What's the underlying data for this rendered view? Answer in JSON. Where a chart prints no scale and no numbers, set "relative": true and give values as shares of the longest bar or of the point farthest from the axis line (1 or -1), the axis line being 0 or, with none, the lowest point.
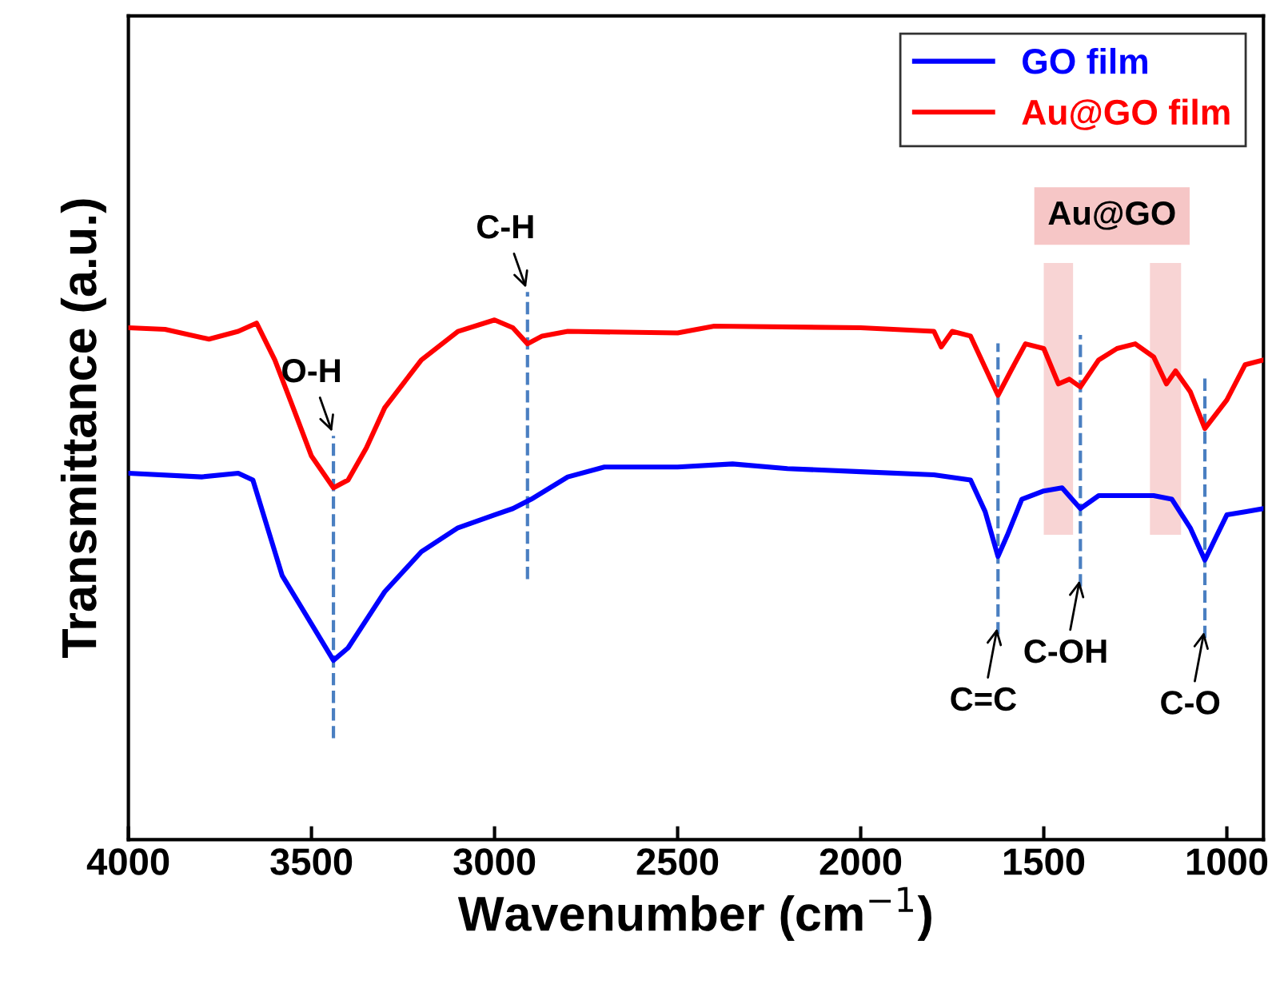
{
  "chart_data": {
    "type": "line",
    "relative": true,
    "xlabel": "Wavenumber (cm$^{−1}$)",
    "ylabel": "Transmittance (a.u.)",
    "xlim": [
      4000,
      900
    ],
    "xticks": [
      4000,
      3500,
      3000,
      2500,
      2000,
      1500,
      1000
    ],
    "legend": "top right",
    "grid": false,
    "series": [
      {
        "name": "GO film",
        "color": "#0000ff",
        "x": [
          4000,
          3800,
          3700,
          3660,
          3620,
          3580,
          3500,
          3440,
          3400,
          3300,
          3200,
          3100,
          3000,
          2950,
          2900,
          2800,
          2700,
          2500,
          2350,
          2200,
          2000,
          1800,
          1700,
          1660,
          1625,
          1600,
          1560,
          1500,
          1450,
          1400,
          1350,
          1250,
          1200,
          1150,
          1100,
          1060,
          1000,
          950,
          900
        ],
        "values": [
          0.705,
          0.698,
          0.705,
          0.692,
          0.6,
          0.508,
          0.415,
          0.345,
          0.369,
          0.477,
          0.554,
          0.6,
          0.625,
          0.637,
          0.655,
          0.698,
          0.717,
          0.717,
          0.723,
          0.714,
          0.708,
          0.702,
          0.692,
          0.631,
          0.545,
          0.585,
          0.655,
          0.671,
          0.677,
          0.637,
          0.662,
          0.662,
          0.662,
          0.655,
          0.6,
          0.538,
          0.625,
          0.631,
          0.637
        ]
      },
      {
        "name": "Au@GO film",
        "color": "#ff0000",
        "x": [
          4000,
          3900,
          3780,
          3700,
          3650,
          3600,
          3550,
          3500,
          3440,
          3400,
          3350,
          3300,
          3200,
          3100,
          3000,
          2950,
          2910,
          2870,
          2800,
          2500,
          2400,
          2000,
          1800,
          1780,
          1750,
          1700,
          1660,
          1625,
          1590,
          1550,
          1500,
          1460,
          1430,
          1400,
          1350,
          1300,
          1250,
          1200,
          1165,
          1140,
          1100,
          1060,
          1000,
          950,
          900
        ],
        "values": [
          0.985,
          0.982,
          0.963,
          0.978,
          0.994,
          0.923,
          0.831,
          0.738,
          0.677,
          0.692,
          0.754,
          0.831,
          0.923,
          0.978,
          1.0,
          0.985,
          0.954,
          0.969,
          0.978,
          0.975,
          0.988,
          0.985,
          0.978,
          0.948,
          0.978,
          0.969,
          0.908,
          0.855,
          0.902,
          0.954,
          0.945,
          0.877,
          0.886,
          0.871,
          0.923,
          0.945,
          0.954,
          0.929,
          0.877,
          0.902,
          0.862,
          0.791,
          0.846,
          0.914,
          0.923
        ]
      }
    ],
    "ref_lines": [
      {
        "axis": "x",
        "value": 3440,
        "label": "O-H",
        "color": "#4a7fc1",
        "line_style": "dashed"
      },
      {
        "axis": "x",
        "value": 2910,
        "label": "C-H",
        "color": "#4a7fc1",
        "line_style": "dashed"
      },
      {
        "axis": "x",
        "value": 1625,
        "label": "C=C",
        "color": "#4a7fc1",
        "line_style": "dashed"
      },
      {
        "axis": "x",
        "value": 1400,
        "label": "C-OH",
        "color": "#4a7fc1",
        "line_style": "dashed"
      },
      {
        "axis": "x",
        "value": 1060,
        "label": "C-O",
        "color": "#4a7fc1",
        "line_style": "dashed"
      }
    ],
    "bands": [
      {
        "axis": "x",
        "from": 1500,
        "to": 1420,
        "color": "#f4b8b8"
      },
      {
        "axis": "x",
        "from": 1210,
        "to": 1125,
        "color": "#f4b8b8"
      }
    ],
    "annotations": [
      "Au@GO"
    ]
  }
}
